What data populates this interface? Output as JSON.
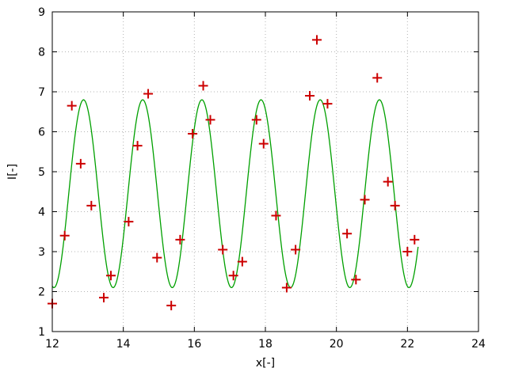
{
  "chart_data": {
    "type": "scatter",
    "title": "",
    "xlabel": "x[-]",
    "ylabel": "I[-]",
    "xlim": [
      12,
      24
    ],
    "ylim": [
      1,
      9
    ],
    "xticks": [
      12,
      14,
      16,
      18,
      20,
      22,
      24
    ],
    "yticks": [
      1,
      2,
      3,
      4,
      5,
      6,
      7,
      8,
      9
    ],
    "grid": true,
    "legend": "none",
    "colors": {
      "points": "#cc0000",
      "curve": "#00a000",
      "grid": "#b4b4b4",
      "axis": "#000000"
    },
    "series": [
      {
        "name": "measured-points",
        "type": "scatter",
        "marker": "plus",
        "points": [
          [
            12.0,
            1.7
          ],
          [
            12.35,
            3.4
          ],
          [
            12.55,
            6.65
          ],
          [
            12.8,
            5.2
          ],
          [
            13.1,
            4.15
          ],
          [
            13.45,
            1.85
          ],
          [
            13.65,
            2.4
          ],
          [
            14.15,
            3.75
          ],
          [
            14.4,
            5.65
          ],
          [
            14.7,
            6.95
          ],
          [
            14.95,
            2.85
          ],
          [
            15.35,
            1.65
          ],
          [
            15.6,
            3.3
          ],
          [
            15.95,
            5.95
          ],
          [
            16.25,
            7.15
          ],
          [
            16.45,
            6.3
          ],
          [
            16.8,
            3.05
          ],
          [
            17.1,
            2.4
          ],
          [
            17.35,
            2.75
          ],
          [
            17.75,
            6.3
          ],
          [
            17.95,
            5.7
          ],
          [
            18.3,
            3.9
          ],
          [
            18.6,
            2.1
          ],
          [
            18.85,
            3.05
          ],
          [
            19.25,
            6.9
          ],
          [
            19.45,
            8.3
          ],
          [
            19.75,
            6.7
          ],
          [
            20.3,
            3.45
          ],
          [
            20.55,
            2.3
          ],
          [
            20.8,
            4.3
          ],
          [
            21.15,
            7.35
          ],
          [
            21.45,
            4.75
          ],
          [
            21.65,
            4.15
          ],
          [
            22.0,
            3.0
          ],
          [
            22.2,
            3.3
          ]
        ]
      },
      {
        "name": "fit-curve",
        "type": "line",
        "function": "cosine",
        "offset": 4.45,
        "amplitude": 2.35,
        "period": 1.666,
        "peak_x": 12.88,
        "x_start": 12.0,
        "x_end": 22.3,
        "y_min": 2.1,
        "y_max": 6.8
      }
    ]
  }
}
